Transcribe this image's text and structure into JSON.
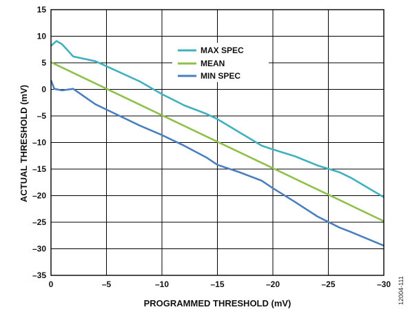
{
  "figure_id": "12004-111",
  "chart_data": {
    "type": "line",
    "xlabel": "PROGRAMMED THRESHOLD (mV)",
    "ylabel": "ACTUAL THRESHOLD (mV)",
    "xlim": [
      0,
      -30
    ],
    "ylim": [
      -35,
      15
    ],
    "x_ticks": [
      0,
      -5,
      -10,
      -15,
      -20,
      -25,
      -30
    ],
    "y_ticks": [
      15,
      10,
      5,
      0,
      -5,
      -10,
      -15,
      -20,
      -25,
      -30,
      -35
    ],
    "x_tick_labels": [
      "0",
      "–5",
      "–10",
      "–15",
      "–20",
      "–25",
      "–30"
    ],
    "y_tick_labels": [
      "15",
      "10",
      "5",
      "0",
      "–5",
      "–10",
      "–15",
      "–20",
      "–25",
      "–30",
      "–35"
    ],
    "grid": true,
    "legend_position": "top-center",
    "series": [
      {
        "name": "MAX SPEC",
        "color": "#3fb0c0",
        "x": [
          0,
          -0.5,
          -1,
          -2,
          -4,
          -6,
          -8,
          -10,
          -12,
          -14,
          -15,
          -17,
          -19,
          -20,
          -22,
          -24,
          -26,
          -27,
          -30
        ],
        "y": [
          8.2,
          9.1,
          8.5,
          6.2,
          5.3,
          3.4,
          1.5,
          -0.9,
          -3.0,
          -4.6,
          -5.6,
          -8.1,
          -10.6,
          -11.3,
          -12.6,
          -14.3,
          -15.6,
          -16.6,
          -20.3
        ]
      },
      {
        "name": "MEAN",
        "color": "#8dc049",
        "x": [
          0,
          -30
        ],
        "y": [
          5.1,
          -24.8
        ]
      },
      {
        "name": "MIN SPEC",
        "color": "#4a7fbf",
        "x": [
          0,
          -0.3,
          -1,
          -2,
          -4,
          -6,
          -8,
          -10,
          -12,
          -14,
          -15,
          -17,
          -19,
          -20,
          -22,
          -24,
          -26,
          -27,
          -30
        ],
        "y": [
          1.7,
          0.1,
          -0.2,
          0.1,
          -2.8,
          -4.8,
          -6.8,
          -8.6,
          -10.6,
          -12.8,
          -14.2,
          -15.6,
          -17.2,
          -18.6,
          -21.2,
          -23.9,
          -26.0,
          -26.8,
          -29.4
        ]
      }
    ]
  }
}
